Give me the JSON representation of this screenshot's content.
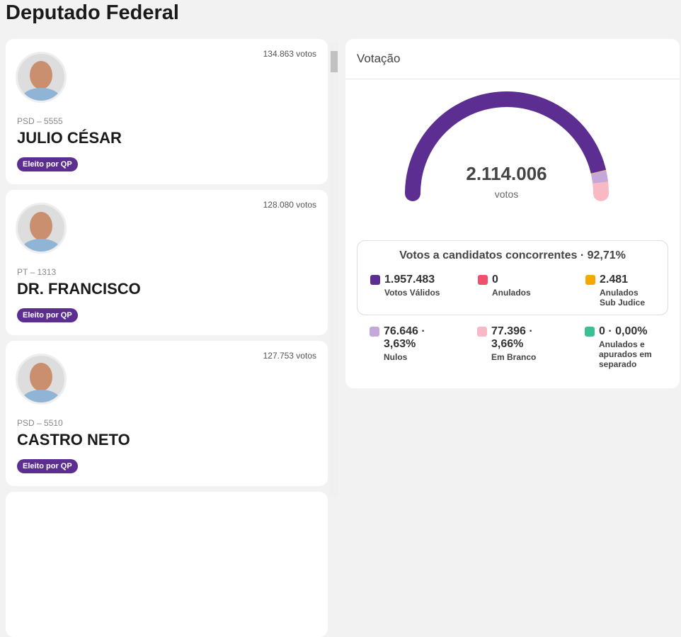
{
  "header": {
    "title": "Deputado Federal"
  },
  "candidates": [
    {
      "votes": "134.863 votos",
      "party": "PSD – 5555",
      "name": "JULIO CÉSAR",
      "status": "Eleito por QP"
    },
    {
      "votes": "128.080 votos",
      "party": "PT – 1313",
      "name": "DR. FRANCISCO",
      "status": "Eleito por QP"
    },
    {
      "votes": "127.753 votos",
      "party": "PSD – 5510",
      "name": "CASTRO NETO",
      "status": "Eleito por QP"
    }
  ],
  "summary": {
    "title": "Votação",
    "total": {
      "value": 2114006,
      "label": "2.114.006"
    },
    "total_unit": "votos",
    "box_title": "Votos a candidatos concorrentes · 92,71%",
    "concorrentes": [
      {
        "value": 1957483,
        "label": "1.957.483",
        "name": "Votos Válidos",
        "color": "#5c2e91"
      },
      {
        "value": 0,
        "label": "0",
        "name": "Anulados",
        "color": "#f0506e"
      },
      {
        "value": 2481,
        "label": "2.481",
        "name": "Anulados Sub Judice",
        "color": "#f5a800"
      }
    ],
    "others": [
      {
        "value": 76646,
        "label": "76.646 · 3,63%",
        "name": "Nulos",
        "color": "#c5a8d9"
      },
      {
        "value": 77396,
        "label": "77.396 · 3,66%",
        "name": "Em Branco",
        "color": "#f8b8c4"
      },
      {
        "value": 0,
        "label": "0 · 0,00%",
        "name": "Anulados e apurados em separado",
        "color": "#3dbf94"
      }
    ]
  }
}
